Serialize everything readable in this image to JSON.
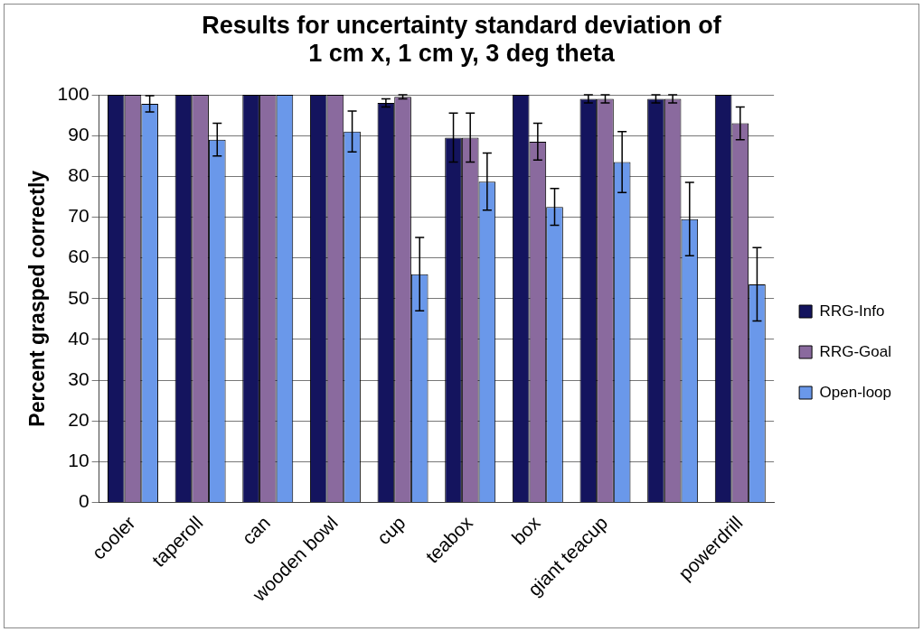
{
  "chart_data": {
    "type": "bar",
    "title": "Results for uncertainty standard deviation of 1 cm x, 1 cm y, 3 deg theta",
    "ylabel": "Percent grasped correctly",
    "categories": [
      "cooler",
      "taperoll",
      "can",
      "wooden bowl",
      "cup",
      "teabox",
      "box",
      "giant teacup",
      null,
      "powerdrill"
    ],
    "series": [
      {
        "name": "RRG-Info",
        "color": "#14145e",
        "values": [
          100,
          100,
          100,
          100,
          98,
          89.5,
          100,
          99,
          99,
          100
        ],
        "errors": [
          null,
          null,
          null,
          null,
          1,
          6,
          null,
          1,
          1,
          null
        ]
      },
      {
        "name": "RRG-Goal",
        "color": "#8a6a9e",
        "values": [
          100,
          100,
          100,
          100,
          99.5,
          89.5,
          88.5,
          99,
          99,
          93
        ],
        "errors": [
          null,
          null,
          null,
          null,
          0.5,
          6,
          4.5,
          1,
          1,
          4
        ]
      },
      {
        "name": "Open-loop",
        "color": "#6a98ea",
        "values": [
          97.8,
          89,
          100,
          91,
          56,
          78.7,
          72.5,
          83.5,
          69.5,
          53.5
        ],
        "errors": [
          2,
          4,
          null,
          5,
          9,
          7,
          4.5,
          7.5,
          9,
          9
        ]
      }
    ],
    "ylim": [
      0,
      100
    ],
    "yticks": [
      0,
      10,
      20,
      30,
      40,
      50,
      60,
      70,
      80,
      90,
      100
    ],
    "grid": "y",
    "legend": "right"
  }
}
